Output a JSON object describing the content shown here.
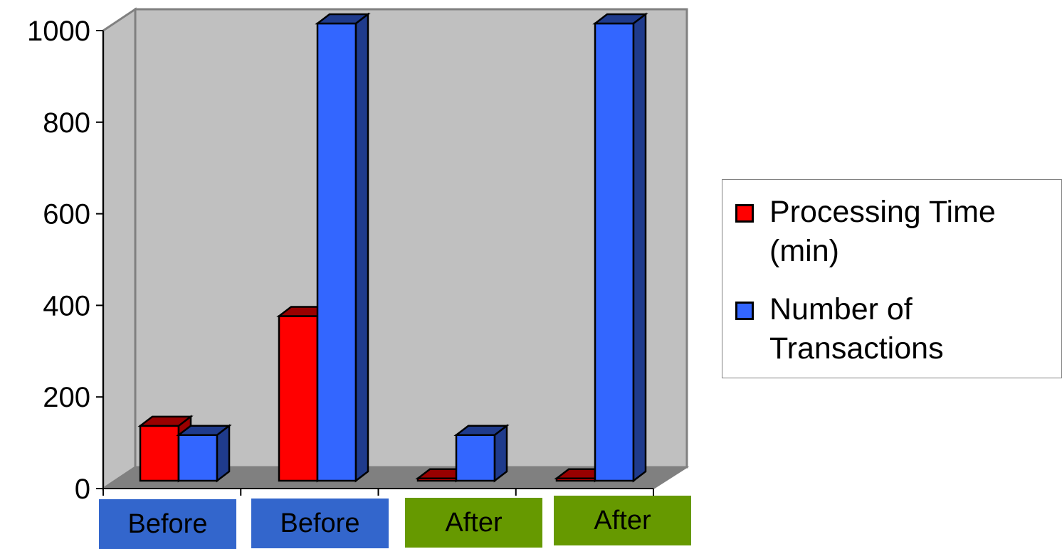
{
  "chart_data": {
    "type": "bar",
    "categories": [
      "Before",
      "Before",
      "After",
      "After"
    ],
    "series": [
      {
        "name": "Processing Time (min)",
        "values": [
          120,
          360,
          5,
          5
        ]
      },
      {
        "name": "Number of Transactions",
        "values": [
          100,
          1000,
          100,
          1000
        ]
      }
    ],
    "title": "",
    "xlabel": "",
    "ylabel": "",
    "ylim": [
      0,
      1000
    ],
    "yticks": [
      "0",
      "200",
      "400",
      "600",
      "800",
      "1000"
    ],
    "grid": false,
    "legend_position": "right",
    "three_d": true
  },
  "colors": {
    "series_front": [
      "#ff0000",
      "#3366ff"
    ],
    "series_side": [
      "#990000",
      "#1f3b8c"
    ],
    "category_boxes": [
      "#3366cc",
      "#3366cc",
      "#669900",
      "#669900"
    ],
    "back_wall": "#c0c0c0",
    "floor": "#808080"
  }
}
